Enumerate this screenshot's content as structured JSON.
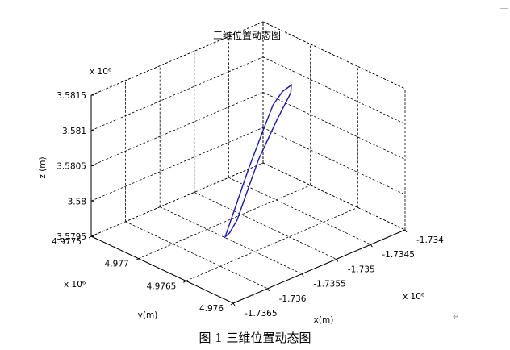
{
  "chart_data": {
    "type": "line3d",
    "title": "三维位置动态图",
    "xlabel": "x(m)",
    "ylabel": "y(m)",
    "zlabel": "z (m)",
    "x_multiplier": "x 10⁶",
    "y_multiplier": "x 10⁶",
    "z_multiplier": "x 10⁶",
    "xlim": [
      -1.7365,
      -1.734
    ],
    "ylim": [
      4.976,
      4.9775
    ],
    "zlim": [
      3.5795,
      3.5815
    ],
    "x_ticks": [
      "-1.7365",
      "-1.736",
      "-1.7355",
      "-1.735",
      "-1.7345",
      "-1.734"
    ],
    "y_ticks": [
      "4.976",
      "4.9765",
      "4.977",
      "4.9775"
    ],
    "z_ticks": [
      "3.5795",
      "3.58",
      "3.5805",
      "3.581",
      "3.5815"
    ],
    "grid": true,
    "series": [
      {
        "color": "#1a1aa6",
        "points": [
          [
            -1.7357,
            4.97665,
            3.57976
          ],
          [
            -1.7354,
            4.97675,
            3.58003
          ],
          [
            -1.7351,
            4.97685,
            3.5803
          ],
          [
            -1.7347,
            4.97697,
            3.58066
          ],
          [
            -1.7345,
            4.97703,
            3.58083
          ],
          [
            -1.73435,
            4.97704,
            3.58095
          ],
          [
            -1.73425,
            4.97702,
            3.58101
          ],
          [
            -1.7343,
            4.97699,
            3.58094
          ],
          [
            -1.7346,
            4.97692,
            3.58072
          ],
          [
            -1.735,
            4.97682,
            3.5804
          ],
          [
            -1.7353,
            4.97673,
            3.5801
          ],
          [
            -1.73555,
            4.97665,
            3.57987
          ],
          [
            -1.7357,
            4.97662,
            3.57977
          ],
          [
            -1.73575,
            4.97663,
            3.57973
          ],
          [
            -1.7357,
            4.97665,
            3.57976
          ]
        ]
      }
    ]
  },
  "figure": {
    "caption": "图 1  三维位置动态图"
  }
}
